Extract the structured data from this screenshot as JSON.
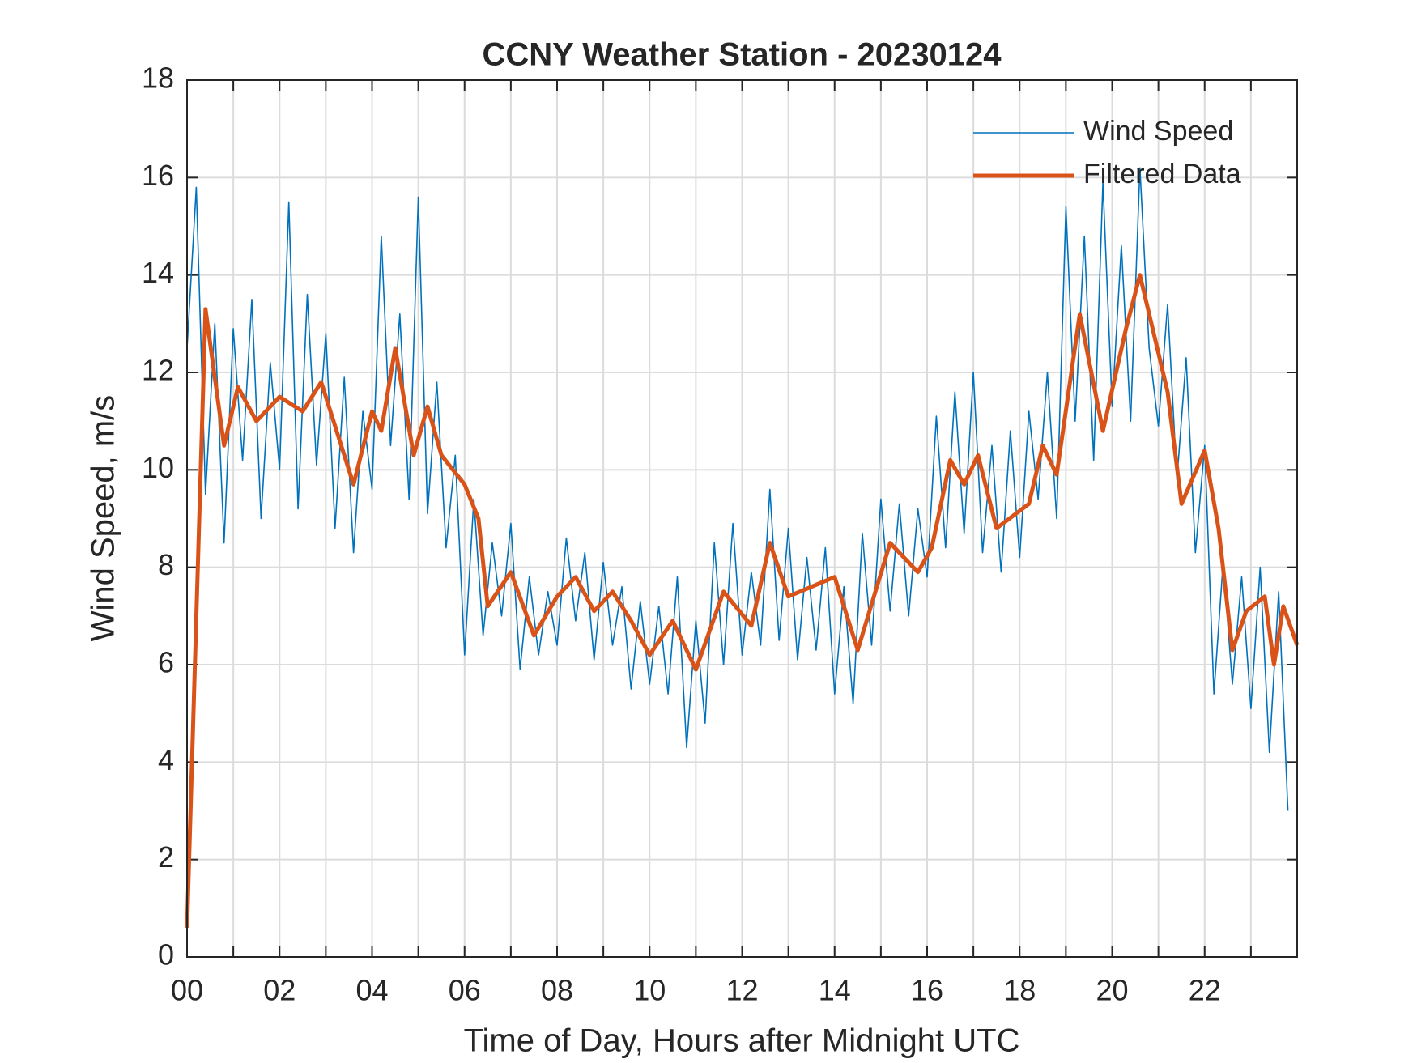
{
  "chart_data": {
    "type": "line",
    "title": "CCNY Weather Station - 20230124",
    "x_label": "Time of Day, Hours after Midnight UTC",
    "y_label": "Wind Speed, m/s",
    "xlim": [
      0,
      24
    ],
    "ylim": [
      0,
      18
    ],
    "xticks": [
      {
        "value": 0,
        "label": "00"
      },
      {
        "value": 2,
        "label": "02"
      },
      {
        "value": 4,
        "label": "04"
      },
      {
        "value": 6,
        "label": "06"
      },
      {
        "value": 8,
        "label": "08"
      },
      10,
      12,
      14,
      16,
      18,
      20,
      22
    ],
    "xminorticks": [
      1,
      3,
      5,
      7,
      9,
      11,
      13,
      15,
      17,
      19,
      21,
      23
    ],
    "yticks": [
      0,
      2,
      4,
      6,
      8,
      10,
      12,
      14,
      16,
      18
    ],
    "grid": true,
    "legend": "northeast",
    "series": [
      {
        "name": "Wind Speed",
        "color": "#0072BD",
        "x": [
          0,
          0.2,
          0.4,
          0.6,
          0.8,
          1,
          1.2,
          1.4,
          1.6,
          1.8,
          2,
          2.2,
          2.4,
          2.6,
          2.8,
          3,
          3.2,
          3.4,
          3.6,
          3.8,
          4,
          4.2,
          4.4,
          4.6,
          4.8,
          5,
          5.2,
          5.4,
          5.6,
          5.8,
          6,
          6.2,
          6.4,
          6.6,
          6.8,
          7,
          7.2,
          7.4,
          7.6,
          7.8,
          8,
          8.2,
          8.4,
          8.6,
          8.8,
          9,
          9.2,
          9.4,
          9.6,
          9.8,
          10,
          10.2,
          10.4,
          10.6,
          10.8,
          11,
          11.2,
          11.4,
          11.6,
          11.8,
          12,
          12.2,
          12.4,
          12.6,
          12.8,
          13,
          13.2,
          13.4,
          13.6,
          13.8,
          14,
          14.2,
          14.4,
          14.6,
          14.8,
          15,
          15.2,
          15.4,
          15.6,
          15.8,
          16,
          16.2,
          16.4,
          16.6,
          16.8,
          17,
          17.2,
          17.4,
          17.6,
          17.8,
          18,
          18.2,
          18.4,
          18.6,
          18.8,
          19,
          19.2,
          19.4,
          19.6,
          19.8,
          20,
          20.2,
          20.4,
          20.6,
          20.8,
          21,
          21.2,
          21.4,
          21.6,
          21.8,
          22,
          22.2,
          22.4,
          22.6,
          22.8,
          23,
          23.2,
          23.4,
          23.6,
          23.8
        ],
        "values": [
          12.5,
          15.8,
          9.5,
          13.0,
          8.5,
          12.9,
          10.2,
          13.5,
          9.0,
          12.2,
          10.0,
          15.5,
          9.2,
          13.6,
          10.1,
          12.8,
          8.8,
          11.9,
          8.3,
          11.2,
          9.6,
          14.8,
          10.5,
          13.2,
          9.4,
          15.6,
          9.1,
          11.8,
          8.4,
          10.3,
          6.2,
          9.4,
          6.6,
          8.5,
          7.0,
          8.9,
          5.9,
          7.8,
          6.2,
          7.5,
          6.4,
          8.6,
          6.9,
          8.3,
          6.1,
          8.1,
          6.4,
          7.6,
          5.5,
          7.3,
          5.6,
          7.2,
          5.4,
          7.8,
          4.3,
          6.9,
          4.8,
          8.5,
          6.0,
          8.9,
          6.2,
          7.9,
          6.4,
          9.6,
          6.5,
          8.8,
          6.1,
          8.2,
          6.3,
          8.4,
          5.4,
          7.6,
          5.2,
          8.7,
          6.4,
          9.4,
          7.1,
          9.3,
          7.0,
          9.2,
          7.8,
          11.1,
          8.4,
          11.6,
          8.7,
          12.0,
          8.3,
          10.5,
          7.9,
          10.8,
          8.2,
          11.2,
          9.4,
          12.0,
          9.0,
          15.4,
          11.0,
          14.8,
          10.2,
          15.9,
          11.3,
          14.6,
          11.0,
          16.2,
          12.5,
          10.9,
          13.4,
          9.8,
          12.3,
          8.3,
          10.5,
          5.4,
          8.1,
          5.6,
          7.8,
          5.1,
          8.0,
          4.2,
          7.5,
          3.0
        ]
      },
      {
        "name": "Filtered Data",
        "color": "#D95319",
        "x": [
          0,
          0.4,
          0.8,
          1.1,
          1.5,
          2,
          2.5,
          2.9,
          3.6,
          4,
          4.2,
          4.5,
          4.9,
          5.2,
          5.5,
          6,
          6.3,
          6.5,
          7,
          7.5,
          8,
          8.4,
          8.8,
          9.2,
          9.6,
          10,
          10.5,
          11,
          11.6,
          12.2,
          12.6,
          13,
          14,
          14.5,
          15.2,
          15.8,
          16.1,
          16.5,
          16.8,
          17.1,
          17.5,
          18.2,
          18.5,
          18.8,
          19.3,
          19.8,
          20.3,
          20.6,
          21.2,
          21.5,
          22,
          22.3,
          22.6,
          22.9,
          23.3,
          23.5,
          23.7,
          24
        ],
        "values": [
          0.6,
          13.3,
          10.5,
          11.7,
          11.0,
          11.5,
          11.2,
          11.8,
          9.7,
          11.2,
          10.8,
          12.5,
          10.3,
          11.3,
          10.3,
          9.7,
          9.0,
          7.2,
          7.9,
          6.6,
          7.4,
          7.8,
          7.1,
          7.5,
          6.9,
          6.2,
          6.9,
          5.9,
          7.5,
          6.8,
          8.5,
          7.4,
          7.8,
          6.3,
          8.5,
          7.9,
          8.4,
          10.2,
          9.7,
          10.3,
          8.8,
          9.3,
          10.5,
          9.9,
          13.2,
          10.8,
          12.9,
          14.0,
          11.6,
          9.3,
          10.4,
          8.8,
          6.3,
          7.1,
          7.4,
          6.0,
          7.2,
          6.4
        ]
      }
    ]
  }
}
